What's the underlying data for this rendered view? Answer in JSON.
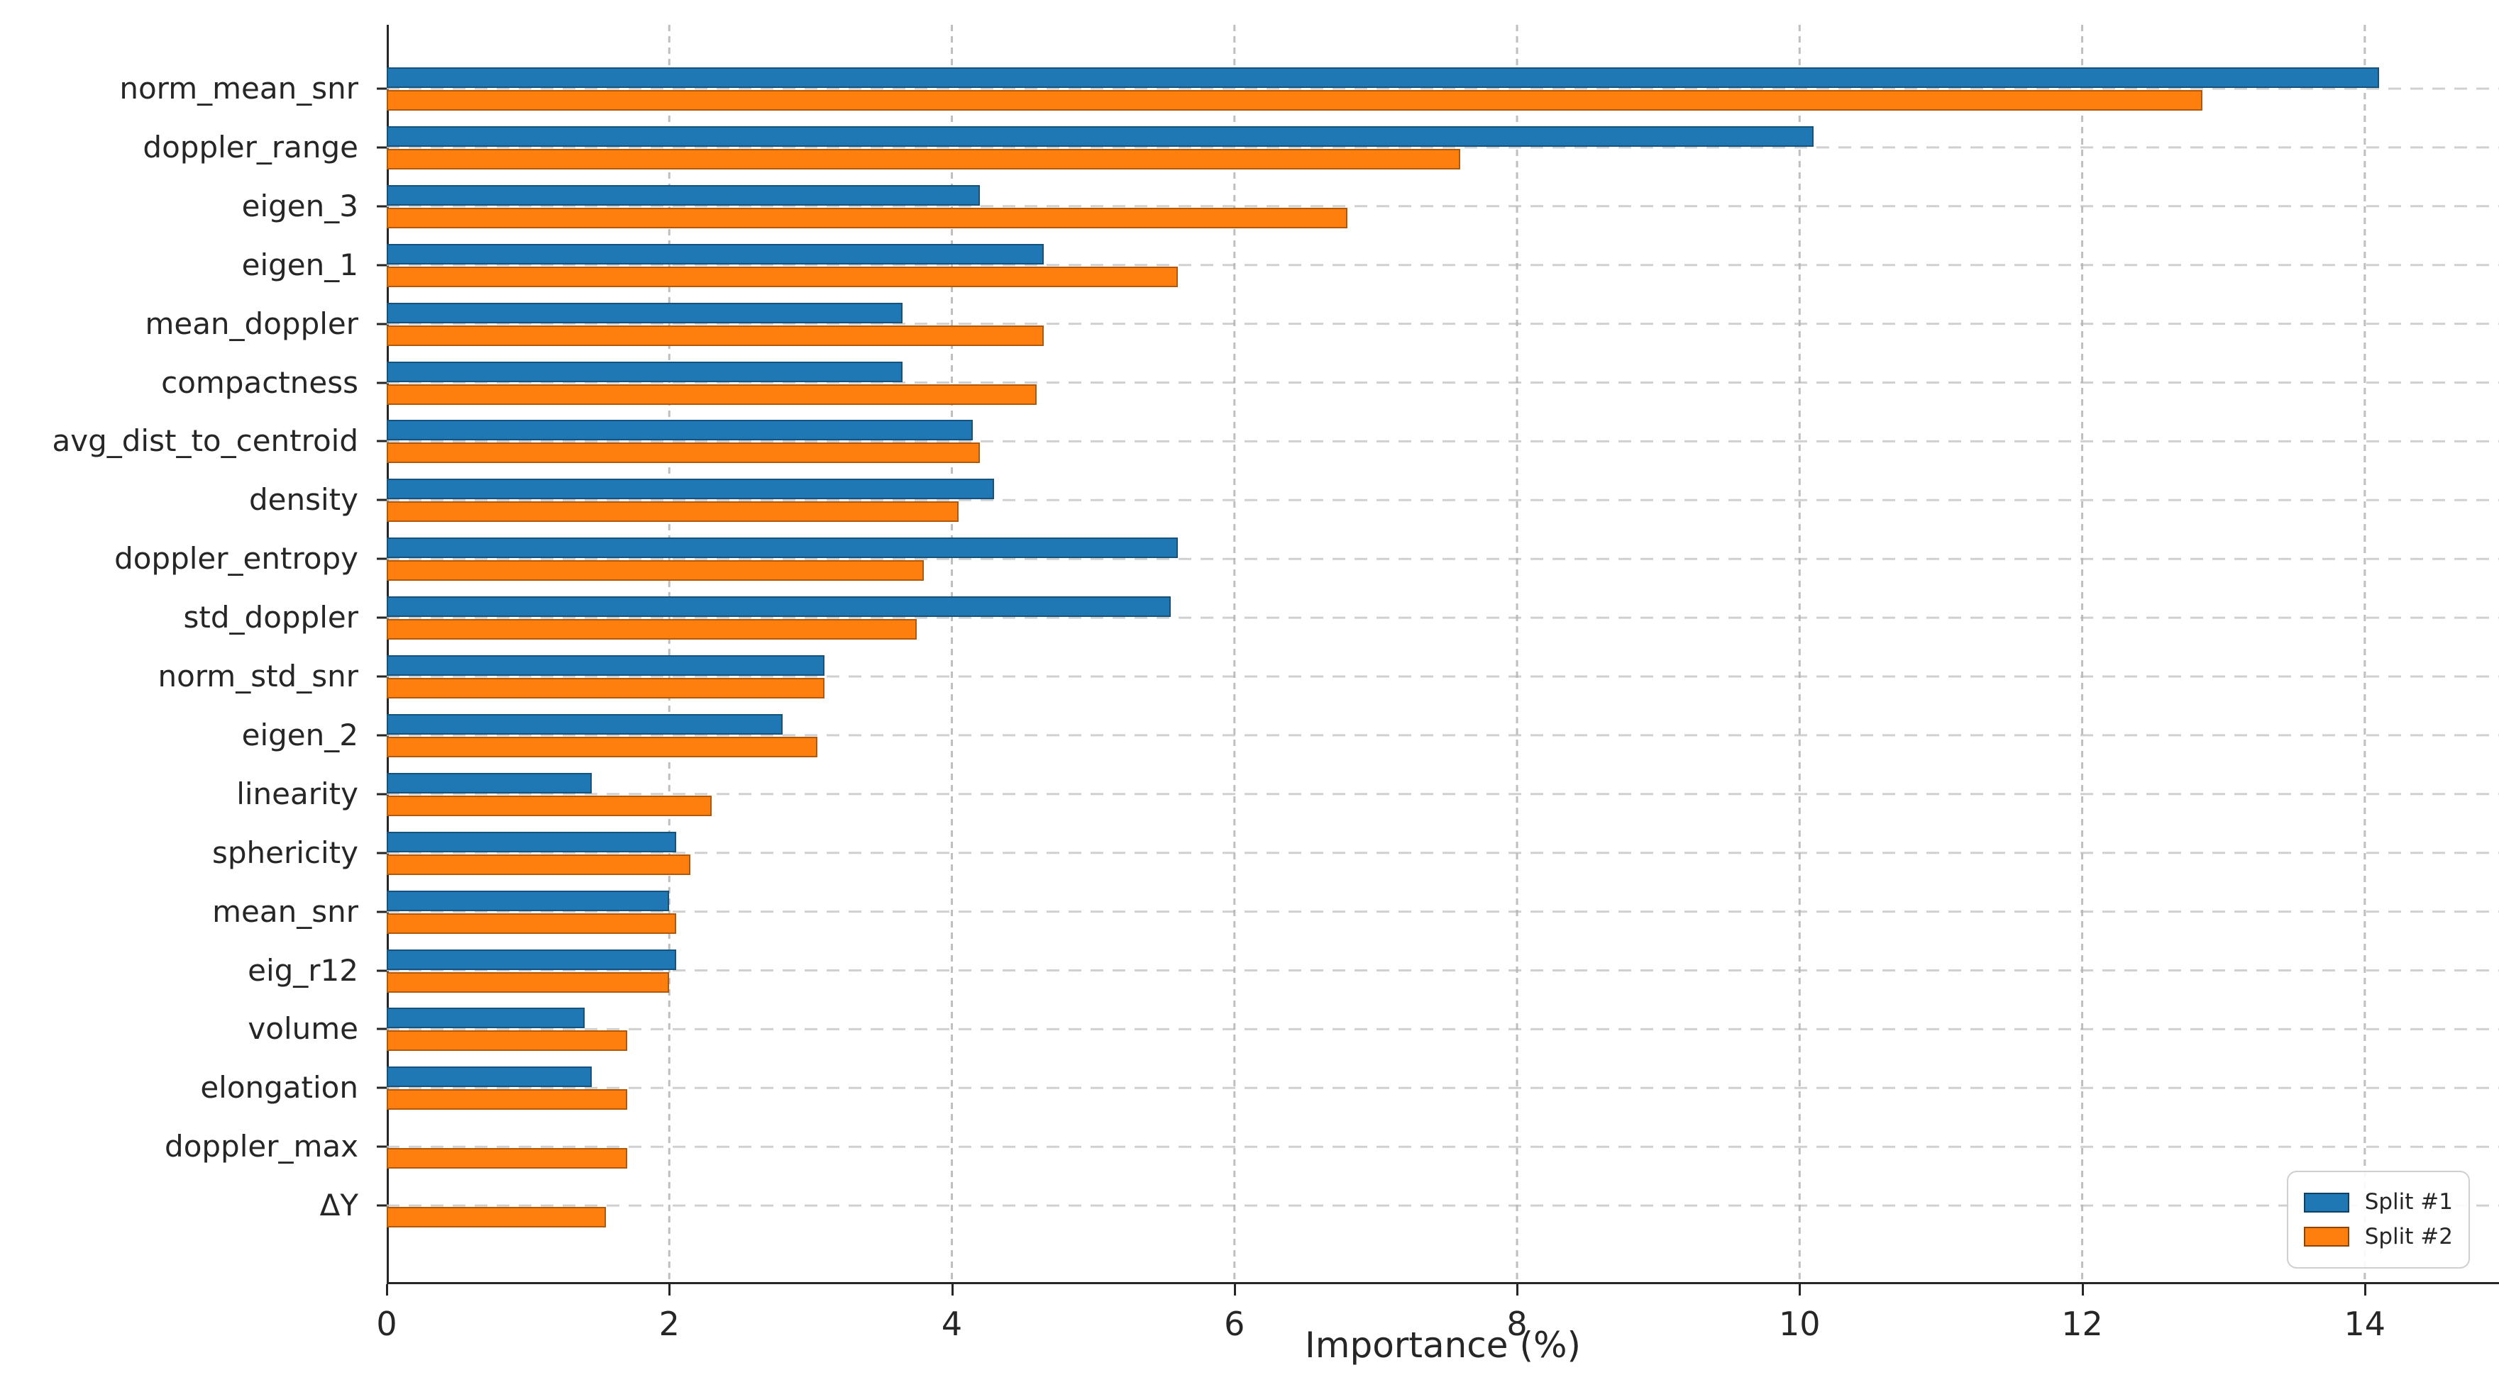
{
  "x_axis": {
    "label": "Importance (%)",
    "ticks": [
      0,
      2,
      4,
      6,
      8,
      10,
      12,
      14
    ]
  },
  "legend": {
    "items": [
      {
        "label": "Split #1",
        "color": "#1f77b4"
      },
      {
        "label": "Split #2",
        "color": "#ff7f0e"
      }
    ]
  },
  "chart_data": {
    "type": "bar",
    "orientation": "horizontal",
    "title": "",
    "xlabel": "Importance (%)",
    "ylabel": "",
    "xlim": [
      0,
      14.95
    ],
    "xticks": [
      0,
      2,
      4,
      6,
      8,
      10,
      12,
      14
    ],
    "grid": true,
    "legend_position": "lower right",
    "categories": [
      "norm_mean_snr",
      "doppler_range",
      "eigen_3",
      "eigen_1",
      "mean_doppler",
      "compactness",
      "avg_dist_to_centroid",
      "density",
      "doppler_entropy",
      "std_doppler",
      "norm_std_snr",
      "eigen_2",
      "linearity",
      "sphericity",
      "mean_snr",
      "eig_r12",
      "volume",
      "elongation",
      "doppler_max",
      "ΔY"
    ],
    "series": [
      {
        "name": "Split #1",
        "color": "#1f77b4",
        "values": [
          14.1,
          10.1,
          4.2,
          4.65,
          3.65,
          3.65,
          4.15,
          4.3,
          5.6,
          5.55,
          3.1,
          2.8,
          1.45,
          2.05,
          2.0,
          2.05,
          1.4,
          1.45,
          0,
          0
        ]
      },
      {
        "name": "Split #2",
        "color": "#ff7f0e",
        "values": [
          12.85,
          7.6,
          6.8,
          5.6,
          4.65,
          4.6,
          4.2,
          4.05,
          3.8,
          3.75,
          3.1,
          3.05,
          2.3,
          2.15,
          2.05,
          2.0,
          1.7,
          1.7,
          1.7,
          1.55
        ]
      }
    ]
  }
}
